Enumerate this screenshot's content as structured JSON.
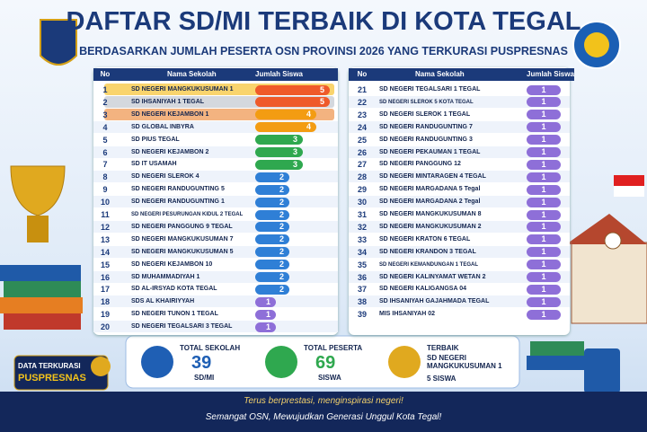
{
  "header": {
    "title": "DAFTAR SD/MI TERBAIK DI KOTA TEGAL",
    "subtitle": "BERDASARKAN JUMLAH PESERTA OSN PROVINSI 2026 YANG TERKURASI PUSPRESNAS"
  },
  "left_table": {
    "headers": [
      "No",
      "Nama Sekolah",
      "Jumlah Siswa"
    ],
    "rows": [
      [
        1,
        "SD NEGERI MANGKUKUSUMAN 1",
        5
      ],
      [
        2,
        "SD IHSANIYAH 1 TEGAL",
        5
      ],
      [
        3,
        "SD NEGERI KEJAMBON 1",
        4
      ],
      [
        4,
        "SD GLOBAL INBYRA",
        4
      ],
      [
        5,
        "SD PIUS TEGAL",
        3
      ],
      [
        6,
        "SD NEGERI KEJAMBON 2",
        3
      ],
      [
        7,
        "SD IT USAMAH",
        3
      ],
      [
        8,
        "SD NEGERI SLEROK 4",
        2
      ],
      [
        9,
        "SD NEGERI RANDUGUNTING 5",
        2
      ],
      [
        10,
        "SD NEGERI RANDUGUNTING 1",
        2
      ],
      [
        11,
        "SD NEGERI PESURUNGAN KIDUL 2 TEGAL",
        2
      ],
      [
        12,
        "SD NEGERI PANGGUNG 9 TEGAL",
        2
      ],
      [
        13,
        "SD NEGERI MANGKUKUSUMAN 7",
        2
      ],
      [
        14,
        "SD NEGERI MANGKUKUSUMAN 5",
        2
      ],
      [
        15,
        "SD NEGERI KEJAMBON 10",
        2
      ],
      [
        16,
        "SD MUHAMMADIYAH 1",
        2
      ],
      [
        17,
        "SD AL-IRSYAD KOTA TEGAL",
        2
      ],
      [
        18,
        "SDS AL KHAIRIYYAH",
        1
      ],
      [
        19,
        "SD NEGERI TUNON 1 TEGAL",
        1
      ],
      [
        20,
        "SD NEGERI TEGALSARI 3 TEGAL",
        1
      ]
    ]
  },
  "right_table": {
    "headers": [
      "No",
      "Nama Sekolah",
      "Jumlah Siswa"
    ],
    "rows": [
      [
        21,
        "SD NEGERI TEGALSARI 1 TEGAL",
        1
      ],
      [
        22,
        "SD NEGERI SLEROK 5 KOTA TEGAL",
        1
      ],
      [
        23,
        "SD NEGERI SLEROK 1 TEGAL",
        1
      ],
      [
        24,
        "SD NEGERI RANDUGUNTING 7",
        1
      ],
      [
        25,
        "SD NEGERI RANDUGUNTING 3",
        1
      ],
      [
        26,
        "SD NEGERI PEKAUMAN 1 TEGAL",
        1
      ],
      [
        27,
        "SD NEGERI PANGGUNG 12",
        1
      ],
      [
        28,
        "SD NEGERI MINTARAGEN 4 TEGAL",
        1
      ],
      [
        29,
        "SD NEGERI MARGADANA 5 Tegal",
        1
      ],
      [
        30,
        "SD NEGERI MARGADANA 2 Tegal",
        1
      ],
      [
        31,
        "SD NEGERI MANGKUKUSUMAN 8",
        1
      ],
      [
        32,
        "SD NEGERI MANGKUKUSUMAN 2",
        1
      ],
      [
        33,
        "SD NEGERI KRATON 6 TEGAL",
        1
      ],
      [
        34,
        "SD NEGERI KRANDON 3 TEGAL",
        1
      ],
      [
        35,
        "SD NEGERI KEMANDUNGAN 1 TEGAL",
        1
      ],
      [
        36,
        "SD NEGERI KALINYAMAT WETAN 2",
        1
      ],
      [
        37,
        "SD NEGERI KALIGANGSA 04",
        1
      ],
      [
        38,
        "SD IHSANIYAH GAJAHMADA TEGAL",
        1
      ],
      [
        39,
        "MIS IHSANIYAH 02",
        1
      ]
    ]
  },
  "summary": [
    {
      "label": "TOTAL SEKOLAH",
      "value": "39",
      "unit": "SD/MI"
    },
    {
      "label": "TOTAL PESERTA",
      "value": "69",
      "unit": "SISWA"
    },
    {
      "label": "TERBAIK",
      "value": "SD NEGERI MANGKUKUSUMAN 1",
      "unit": "5 SISWA"
    }
  ],
  "badge": {
    "line1": "DATA TERKURASI",
    "line2": "PUSPRESNAS"
  },
  "footer": {
    "line1": "Terus berprestasi, menginspirasi negeri!",
    "line2": "Semangat OSN, Mewujudkan Generasi Unggul Kota Tegal!"
  }
}
